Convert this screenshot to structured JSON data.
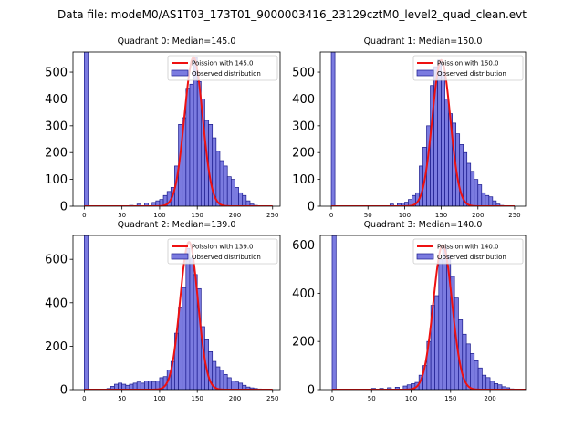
{
  "suptitle": "Data file: modeM0/AS1T03_173T01_9000003416_23129cztM0_level2_quad_clean.evt",
  "colors": {
    "bar_fill": "#7b7be0",
    "bar_edge": "#1a1a8c",
    "fit_line": "#ee1111"
  },
  "chart_data": [
    {
      "type": "bar",
      "title": "Quadrant 0: Median=145.0",
      "legend": [
        "Poission with 145.0",
        "Observed distribution"
      ],
      "legend_position": "top-right",
      "xlim": [
        -15,
        260
      ],
      "ylim": [
        0,
        575
      ],
      "xticks": [
        0,
        50,
        100,
        150,
        200,
        250
      ],
      "yticks": [
        0,
        100,
        200,
        300,
        400,
        500
      ],
      "lambda": 145.0,
      "fit_peak": 555,
      "bin_width": 5,
      "x": [
        0,
        60,
        70,
        80,
        90,
        95,
        100,
        105,
        110,
        115,
        120,
        125,
        130,
        135,
        140,
        145,
        150,
        155,
        160,
        165,
        170,
        175,
        180,
        185,
        190,
        195,
        200,
        205,
        210,
        215,
        220,
        225
      ],
      "values": [
        575,
        3,
        8,
        12,
        14,
        20,
        25,
        40,
        55,
        70,
        150,
        305,
        330,
        440,
        455,
        555,
        465,
        400,
        320,
        305,
        255,
        205,
        170,
        150,
        110,
        100,
        70,
        50,
        40,
        20,
        8,
        3
      ]
    },
    {
      "type": "bar",
      "title": "Quadrant 1: Median=150.0",
      "legend": [
        "Poission with 150.0",
        "Observed distribution"
      ],
      "legend_position": "top-right",
      "xlim": [
        -15,
        265
      ],
      "ylim": [
        0,
        575
      ],
      "xticks": [
        0,
        50,
        100,
        150,
        200,
        250
      ],
      "yticks": [
        0,
        100,
        200,
        300,
        400,
        500
      ],
      "lambda": 150.0,
      "fit_peak": 545,
      "bin_width": 5,
      "x": [
        0,
        80,
        90,
        95,
        100,
        105,
        110,
        115,
        120,
        125,
        130,
        135,
        140,
        145,
        150,
        155,
        160,
        165,
        170,
        175,
        180,
        185,
        190,
        195,
        200,
        205,
        210,
        215,
        220,
        225,
        230
      ],
      "values": [
        575,
        8,
        10,
        12,
        15,
        25,
        40,
        50,
        150,
        220,
        300,
        450,
        520,
        545,
        500,
        400,
        345,
        310,
        270,
        230,
        200,
        160,
        130,
        100,
        80,
        50,
        40,
        35,
        20,
        8,
        3
      ]
    },
    {
      "type": "bar",
      "title": "Quadrant 2: Median=139.0",
      "legend": [
        "Poission with 139.0",
        "Observed distribution"
      ],
      "legend_position": "top-right",
      "xlim": [
        -15,
        260
      ],
      "ylim": [
        0,
        710
      ],
      "xticks": [
        0,
        50,
        100,
        150,
        200,
        250
      ],
      "yticks": [
        0,
        200,
        400,
        600
      ],
      "lambda": 139.0,
      "fit_peak": 680,
      "bin_width": 5,
      "x": [
        0,
        30,
        35,
        40,
        45,
        50,
        55,
        60,
        65,
        70,
        75,
        80,
        85,
        90,
        95,
        100,
        105,
        110,
        115,
        120,
        125,
        130,
        135,
        140,
        145,
        150,
        155,
        160,
        165,
        170,
        175,
        180,
        185,
        190,
        195,
        200,
        205,
        210,
        215,
        220,
        225,
        230,
        235,
        240
      ],
      "values": [
        710,
        5,
        15,
        25,
        30,
        25,
        20,
        25,
        30,
        35,
        30,
        40,
        40,
        35,
        40,
        55,
        60,
        90,
        130,
        260,
        380,
        470,
        650,
        605,
        530,
        465,
        290,
        230,
        175,
        130,
        105,
        90,
        70,
        55,
        40,
        35,
        30,
        20,
        12,
        8,
        5,
        3,
        2,
        1
      ]
    },
    {
      "type": "bar",
      "title": "Quadrant 3: Median=140.0",
      "legend": [
        "Poission with 140.0",
        "Observed distribution"
      ],
      "legend_position": "top-right",
      "xlim": [
        -15,
        245
      ],
      "ylim": [
        0,
        640
      ],
      "xticks": [
        0,
        50,
        100,
        150,
        200
      ],
      "yticks": [
        0,
        200,
        400,
        600
      ],
      "lambda": 140.0,
      "fit_peak": 600,
      "bin_width": 5,
      "x": [
        0,
        50,
        60,
        70,
        80,
        90,
        95,
        100,
        105,
        110,
        115,
        120,
        125,
        130,
        135,
        140,
        145,
        150,
        155,
        160,
        165,
        170,
        175,
        180,
        185,
        190,
        195,
        200,
        205,
        210,
        215,
        220,
        225,
        230
      ],
      "values": [
        640,
        5,
        5,
        8,
        10,
        15,
        20,
        25,
        30,
        60,
        100,
        200,
        350,
        390,
        540,
        590,
        555,
        470,
        380,
        290,
        230,
        190,
        150,
        120,
        90,
        60,
        50,
        35,
        25,
        20,
        12,
        8,
        3,
        1
      ]
    }
  ]
}
